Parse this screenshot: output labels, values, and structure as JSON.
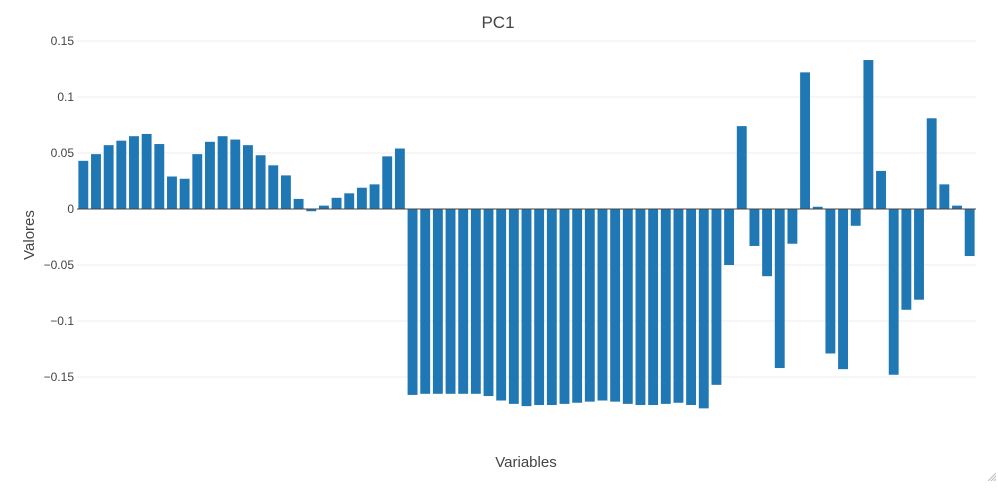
{
  "chart_data": {
    "type": "bar",
    "title": "PC1",
    "xlabel": "Variables",
    "ylabel": "Valores",
    "ylim": [
      -0.17,
      0.15
    ],
    "yticks": [
      0.15,
      0.1,
      0.05,
      0,
      -0.05,
      -0.1,
      -0.15
    ],
    "ytick_labels": [
      "0.15",
      "0.1",
      "0.05",
      "0",
      "−0.05",
      "−0.1",
      "−0.15"
    ],
    "bar_color": "#1f77b4",
    "grid": true,
    "values": [
      0.043,
      0.049,
      0.057,
      0.061,
      0.065,
      0.067,
      0.058,
      0.029,
      0.027,
      0.049,
      0.06,
      0.065,
      0.062,
      0.057,
      0.048,
      0.039,
      0.03,
      0.009,
      -0.002,
      0.003,
      0.01,
      0.014,
      0.019,
      0.022,
      0.047,
      0.054,
      -0.166,
      -0.165,
      -0.165,
      -0.165,
      -0.165,
      -0.165,
      -0.167,
      -0.171,
      -0.174,
      -0.176,
      -0.175,
      -0.175,
      -0.174,
      -0.173,
      -0.172,
      -0.171,
      -0.172,
      -0.174,
      -0.175,
      -0.175,
      -0.174,
      -0.173,
      -0.175,
      -0.178,
      -0.157,
      -0.05,
      0.074,
      -0.033,
      -0.06,
      -0.142,
      -0.031,
      0.122,
      0.002,
      -0.129,
      -0.143,
      -0.015,
      0.133,
      0.034,
      -0.148,
      -0.09,
      -0.081,
      0.081,
      0.022,
      0.003,
      -0.042
    ]
  },
  "icons": {
    "resize": "resize-corner-icon"
  }
}
